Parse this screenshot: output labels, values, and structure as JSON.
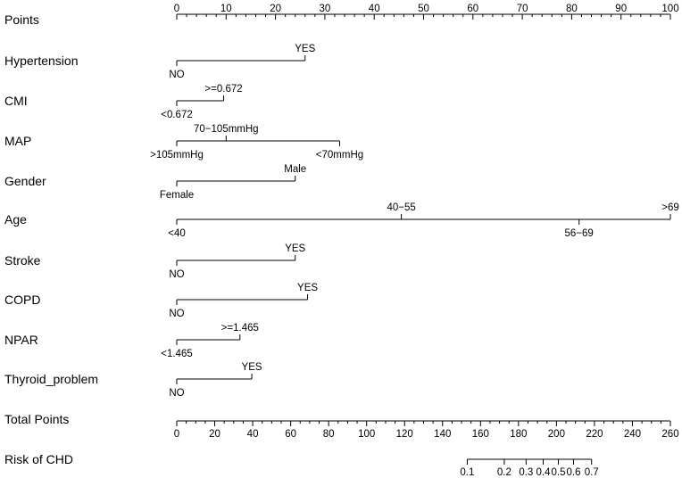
{
  "chart_data": {
    "type": "nomogram",
    "points_scale": {
      "label": "Points",
      "min": 0,
      "max": 100,
      "major_ticks": [
        0,
        10,
        20,
        30,
        40,
        50,
        60,
        70,
        80,
        90,
        100
      ],
      "minor_step": 2
    },
    "variables": [
      {
        "name": "Hypertension",
        "levels": [
          {
            "label": "NO",
            "points": 0,
            "side": "below"
          },
          {
            "label": "YES",
            "points": 26,
            "side": "above"
          }
        ]
      },
      {
        "name": "CMI",
        "levels": [
          {
            "label": "<0.672",
            "points": 0,
            "side": "below"
          },
          {
            "label": ">=0.672",
            "points": 9.5,
            "side": "above"
          }
        ]
      },
      {
        "name": "MAP",
        "levels": [
          {
            "label": ">105mmHg",
            "points": 0,
            "side": "below"
          },
          {
            "label": "70−105mmHg",
            "points": 10,
            "side": "above"
          },
          {
            "label": "<70mmHg",
            "points": 33,
            "side": "below"
          }
        ]
      },
      {
        "name": "Gender",
        "levels": [
          {
            "label": "Female",
            "points": 0,
            "side": "below"
          },
          {
            "label": "Male",
            "points": 24,
            "side": "above"
          }
        ]
      },
      {
        "name": "Age",
        "levels": [
          {
            "label": "<40",
            "points": 0,
            "side": "below"
          },
          {
            "label": "40−55",
            "points": 45.5,
            "side": "above"
          },
          {
            "label": "56−69",
            "points": 81.5,
            "side": "below"
          },
          {
            "label": ">69",
            "points": 100,
            "side": "above"
          }
        ]
      },
      {
        "name": "Stroke",
        "levels": [
          {
            "label": "NO",
            "points": 0,
            "side": "below"
          },
          {
            "label": "YES",
            "points": 24,
            "side": "above"
          }
        ]
      },
      {
        "name": "COPD",
        "levels": [
          {
            "label": "NO",
            "points": 0,
            "side": "below"
          },
          {
            "label": "YES",
            "points": 26.5,
            "side": "above"
          }
        ]
      },
      {
        "name": "NPAR",
        "levels": [
          {
            "label": "<1.465",
            "points": 0,
            "side": "below"
          },
          {
            "label": ">=1.465",
            "points": 12.8,
            "side": "above"
          }
        ]
      },
      {
        "name": "Thyroid_problem",
        "levels": [
          {
            "label": "NO",
            "points": 0,
            "side": "below"
          },
          {
            "label": "YES",
            "points": 15.2,
            "side": "above"
          }
        ]
      }
    ],
    "total_points_scale": {
      "label": "Total Points",
      "min": 0,
      "max": 260,
      "major_ticks": [
        0,
        20,
        40,
        60,
        80,
        100,
        120,
        140,
        160,
        180,
        200,
        220,
        240,
        260
      ],
      "minor_step": 5
    },
    "risk_scale": {
      "label": "Risk of CHD",
      "ticks": [
        {
          "label": "0.1",
          "total_points": 153
        },
        {
          "label": "0.2",
          "total_points": 172.5
        },
        {
          "label": "0.3",
          "total_points": 184
        },
        {
          "label": "0.4",
          "total_points": 193
        },
        {
          "label": "0.5",
          "total_points": 201
        },
        {
          "label": "0.6",
          "total_points": 209
        },
        {
          "label": "0.7",
          "total_points": 218.5
        }
      ]
    }
  }
}
